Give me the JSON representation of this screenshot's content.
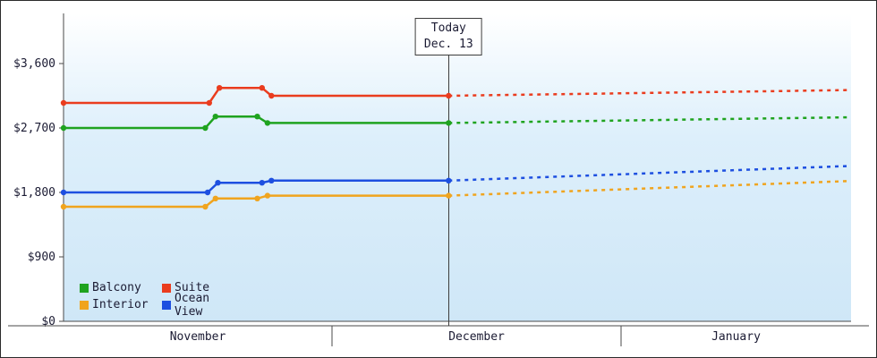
{
  "chart_data": {
    "type": "line",
    "ylim": [
      0,
      4300
    ],
    "yticks": [
      {
        "value": 0,
        "label": "$0"
      },
      {
        "value": 900,
        "label": "$900"
      },
      {
        "value": 1800,
        "label": "$1,800"
      },
      {
        "value": 2700,
        "label": "$2,700"
      },
      {
        "value": 3600,
        "label": "$3,600"
      }
    ],
    "months": [
      "November",
      "December",
      "January"
    ],
    "month_boundaries": [
      0,
      0.341,
      0.708,
      1
    ],
    "today": {
      "x": 0.489,
      "line1": "Today",
      "line2": "Dec. 13"
    },
    "background": {
      "top": "#ffffff",
      "mid": "#ddeffb",
      "bottom": "#cfe7f7"
    },
    "axis_color": "#4a4a4a",
    "today_line_color": "#3c3c3c",
    "text_color": "#1b1b33",
    "legend_order": [
      "Balcony",
      "Suite",
      "Interior",
      "Ocean View"
    ],
    "series": [
      {
        "name": "Balcony",
        "color": "#1fa31f",
        "solid": [
          [
            0,
            2700
          ],
          [
            0.18,
            2700
          ],
          [
            0.193,
            2860
          ],
          [
            0.246,
            2860
          ],
          [
            0.259,
            2770
          ],
          [
            0.489,
            2770
          ]
        ],
        "dotted": [
          [
            0.489,
            2770
          ],
          [
            1,
            2850
          ]
        ]
      },
      {
        "name": "Suite",
        "color": "#ea3c1e",
        "solid": [
          [
            0,
            3050
          ],
          [
            0.185,
            3050
          ],
          [
            0.198,
            3260
          ],
          [
            0.252,
            3260
          ],
          [
            0.264,
            3150
          ],
          [
            0.489,
            3150
          ]
        ],
        "dotted": [
          [
            0.489,
            3150
          ],
          [
            1,
            3230
          ]
        ]
      },
      {
        "name": "Interior",
        "color": "#f0a41e",
        "solid": [
          [
            0,
            1600
          ],
          [
            0.18,
            1600
          ],
          [
            0.193,
            1715
          ],
          [
            0.246,
            1715
          ],
          [
            0.259,
            1755
          ],
          [
            0.489,
            1755
          ]
        ],
        "dotted": [
          [
            0.489,
            1755
          ],
          [
            1,
            1960
          ]
        ]
      },
      {
        "name": "Ocean View",
        "color": "#1d4fe0",
        "solid": [
          [
            0,
            1800
          ],
          [
            0.183,
            1800
          ],
          [
            0.196,
            1935
          ],
          [
            0.252,
            1935
          ],
          [
            0.264,
            1965
          ],
          [
            0.489,
            1965
          ]
        ],
        "dotted": [
          [
            0.489,
            1965
          ],
          [
            1,
            2170
          ]
        ]
      }
    ]
  }
}
